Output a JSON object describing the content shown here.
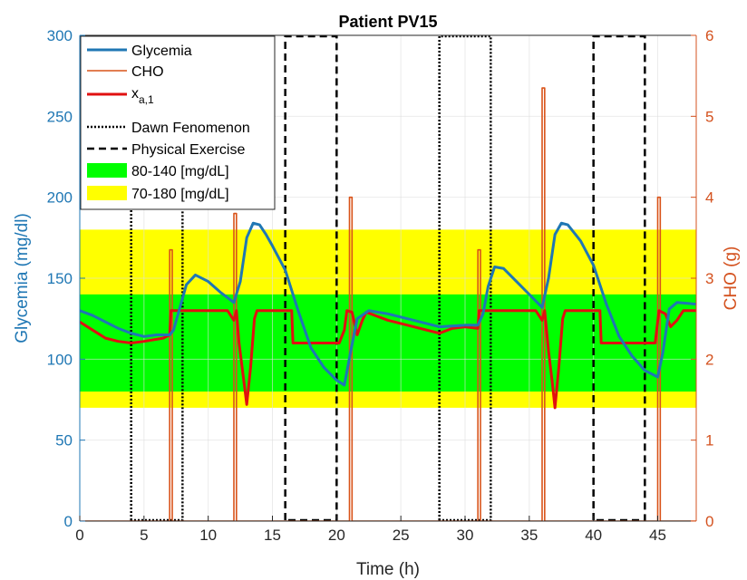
{
  "chart_data": {
    "type": "line",
    "title": "Patient PV15",
    "xlabel": "Time (h)",
    "ylabel_left": "Glycemia (mg/dl)",
    "ylabel_right": "CHO (g)",
    "xlim": [
      0,
      48
    ],
    "ylim_left": [
      0,
      300
    ],
    "ylim_right": [
      0,
      6
    ],
    "xticks": [
      "0",
      "5",
      "10",
      "15",
      "20",
      "25",
      "30",
      "35",
      "40",
      "45"
    ],
    "yticks_left": [
      "0",
      "50",
      "100",
      "150",
      "200",
      "250",
      "300"
    ],
    "yticks_right": [
      "0",
      "1",
      "2",
      "3",
      "4",
      "5",
      "6"
    ],
    "grid": true,
    "legend_position": "top-left",
    "colors": {
      "glycemia": "#1f77b4",
      "cho": "#d95319",
      "xa1": "#e01010",
      "band_80_140": "#00ff00",
      "band_70_180": "#ffff00",
      "axis_left": "#1f77b4",
      "axis_right": "#d4521f"
    },
    "legend": {
      "glycemia": "Glycemia",
      "cho": "CHO",
      "xa_main": "x",
      "xa_sub": "a,1",
      "dawn": "Dawn Fenomenon",
      "exercise": "Physical Exercise",
      "band_80_140": "80-140 [mg/dL]",
      "band_70_180": "70-180 [mg/dL]"
    },
    "bands": [
      {
        "name": "70-180 [mg/dL]",
        "range": [
          70,
          180
        ]
      },
      {
        "name": "80-140 [mg/dL]",
        "range": [
          80,
          140
        ]
      }
    ],
    "dawn_windows": [
      [
        4,
        8
      ],
      [
        28,
        32
      ]
    ],
    "exercise_windows": [
      [
        16,
        20
      ],
      [
        40,
        44
      ]
    ],
    "series": [
      {
        "name": "Glycemia",
        "axis": "left",
        "points": [
          [
            0,
            130
          ],
          [
            1,
            127
          ],
          [
            2,
            123
          ],
          [
            3,
            119
          ],
          [
            4,
            116
          ],
          [
            5,
            114
          ],
          [
            6,
            115
          ],
          [
            7,
            115
          ],
          [
            7.3,
            118
          ],
          [
            7.8,
            132
          ],
          [
            8.3,
            146
          ],
          [
            9,
            152
          ],
          [
            10,
            148
          ],
          [
            11,
            141
          ],
          [
            12,
            135
          ],
          [
            12.5,
            148
          ],
          [
            13,
            175
          ],
          [
            13.5,
            184
          ],
          [
            14,
            183
          ],
          [
            14.5,
            177
          ],
          [
            15,
            170
          ],
          [
            16,
            155
          ],
          [
            17,
            130
          ],
          [
            18,
            107
          ],
          [
            19,
            95
          ],
          [
            20,
            87
          ],
          [
            20.6,
            84
          ],
          [
            21.1,
            105
          ],
          [
            21.6,
            125
          ],
          [
            22.5,
            130
          ],
          [
            24,
            128
          ],
          [
            26,
            124
          ],
          [
            28,
            120
          ],
          [
            30,
            121
          ],
          [
            31,
            121
          ],
          [
            31.4,
            128
          ],
          [
            31.8,
            145
          ],
          [
            32.3,
            157
          ],
          [
            33,
            156
          ],
          [
            34,
            148
          ],
          [
            35,
            140
          ],
          [
            36,
            132
          ],
          [
            36.5,
            150
          ],
          [
            37,
            177
          ],
          [
            37.5,
            184
          ],
          [
            38,
            183
          ],
          [
            39,
            173
          ],
          [
            40,
            158
          ],
          [
            41,
            134
          ],
          [
            42,
            114
          ],
          [
            43,
            102
          ],
          [
            44,
            93
          ],
          [
            45,
            89
          ],
          [
            45.4,
            104
          ],
          [
            45.9,
            131
          ],
          [
            46.5,
            135
          ],
          [
            48,
            134
          ]
        ]
      },
      {
        "name": "CHO",
        "axis": "right",
        "points": [
          [
            0,
            0
          ],
          [
            7,
            0
          ],
          [
            7,
            3.35
          ],
          [
            7.2,
            3.35
          ],
          [
            7.2,
            0
          ],
          [
            12,
            0
          ],
          [
            12,
            3.8
          ],
          [
            12.2,
            3.8
          ],
          [
            12.2,
            0
          ],
          [
            21,
            0
          ],
          [
            21,
            4
          ],
          [
            21.2,
            4
          ],
          [
            21.2,
            0
          ],
          [
            31,
            0
          ],
          [
            31,
            3.35
          ],
          [
            31.2,
            3.35
          ],
          [
            31.2,
            0
          ],
          [
            36,
            0
          ],
          [
            36,
            5.35
          ],
          [
            36.2,
            5.35
          ],
          [
            36.2,
            0
          ],
          [
            45,
            0
          ],
          [
            45,
            4
          ],
          [
            45.2,
            4
          ],
          [
            45.2,
            0
          ],
          [
            48,
            0
          ]
        ]
      },
      {
        "name": "x_a,1",
        "axis": "left",
        "points": [
          [
            0,
            123
          ],
          [
            1,
            118
          ],
          [
            2,
            113
          ],
          [
            3,
            111
          ],
          [
            4,
            110
          ],
          [
            5,
            111
          ],
          [
            6.5,
            113
          ],
          [
            7,
            115
          ],
          [
            7.1,
            130
          ],
          [
            11.5,
            130
          ],
          [
            12,
            124
          ],
          [
            12.2,
            130
          ],
          [
            12.4,
            110
          ],
          [
            12.8,
            85
          ],
          [
            13,
            72
          ],
          [
            13.3,
            95
          ],
          [
            13.6,
            125
          ],
          [
            13.8,
            130
          ],
          [
            16.5,
            130
          ],
          [
            16.6,
            110
          ],
          [
            20.2,
            110
          ],
          [
            20.6,
            118
          ],
          [
            20.8,
            130
          ],
          [
            21.2,
            129
          ],
          [
            21.6,
            115
          ],
          [
            22,
            124
          ],
          [
            22.3,
            129
          ],
          [
            24,
            124
          ],
          [
            26,
            120
          ],
          [
            28,
            116
          ],
          [
            29,
            119
          ],
          [
            30,
            120
          ],
          [
            31,
            119
          ],
          [
            31.1,
            130
          ],
          [
            35.5,
            130
          ],
          [
            36,
            124
          ],
          [
            36.2,
            130
          ],
          [
            36.5,
            105
          ],
          [
            36.8,
            85
          ],
          [
            37,
            70
          ],
          [
            37.3,
            95
          ],
          [
            37.6,
            125
          ],
          [
            37.8,
            130
          ],
          [
            40.5,
            130
          ],
          [
            40.6,
            110
          ],
          [
            44.8,
            110
          ],
          [
            45.1,
            130
          ],
          [
            45.6,
            128
          ],
          [
            46,
            120
          ],
          [
            46.5,
            124
          ],
          [
            47,
            130
          ],
          [
            48,
            130
          ]
        ]
      }
    ]
  }
}
